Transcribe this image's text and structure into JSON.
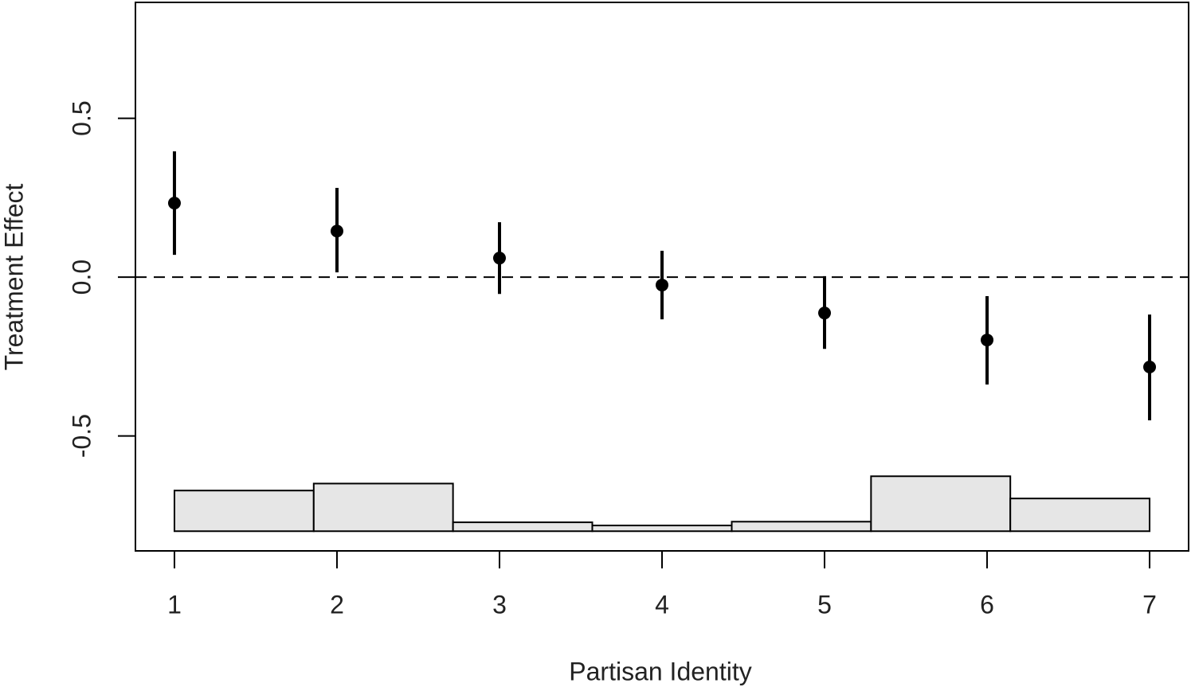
{
  "chart_data": {
    "type": "scatter",
    "x_label": "Partisan Identity",
    "y_label": "Treatment Effect",
    "x": [
      1,
      2,
      3,
      4,
      5,
      6,
      7
    ],
    "values": [
      0.233,
      0.145,
      0.06,
      -0.025,
      -0.113,
      -0.198,
      -0.283
    ],
    "lower": [
      0.07,
      0.015,
      -0.053,
      -0.133,
      -0.226,
      -0.338,
      -0.451
    ],
    "upper": [
      0.396,
      0.281,
      0.173,
      0.083,
      0.003,
      -0.06,
      -0.118
    ],
    "color": "#000000",
    "xlim": [
      0.76,
      7.24
    ],
    "ylim": [
      -0.862,
      0.865
    ],
    "xticks": [
      1,
      2,
      3,
      4,
      5,
      6,
      7
    ],
    "yticks": [
      -0.5,
      {
        "value": 0,
        "label": "0.0"
      },
      0.5
    ],
    "hline": 0,
    "histogram": {
      "bins": [
        1,
        1.857,
        2.714,
        3.571,
        4.429,
        5.286,
        6.143,
        7
      ],
      "values": [
        0.128,
        0.15,
        0.028,
        0.018,
        0.03,
        0.173,
        0.103
      ],
      "base": -0.8,
      "color": "#e6e6e6"
    }
  }
}
